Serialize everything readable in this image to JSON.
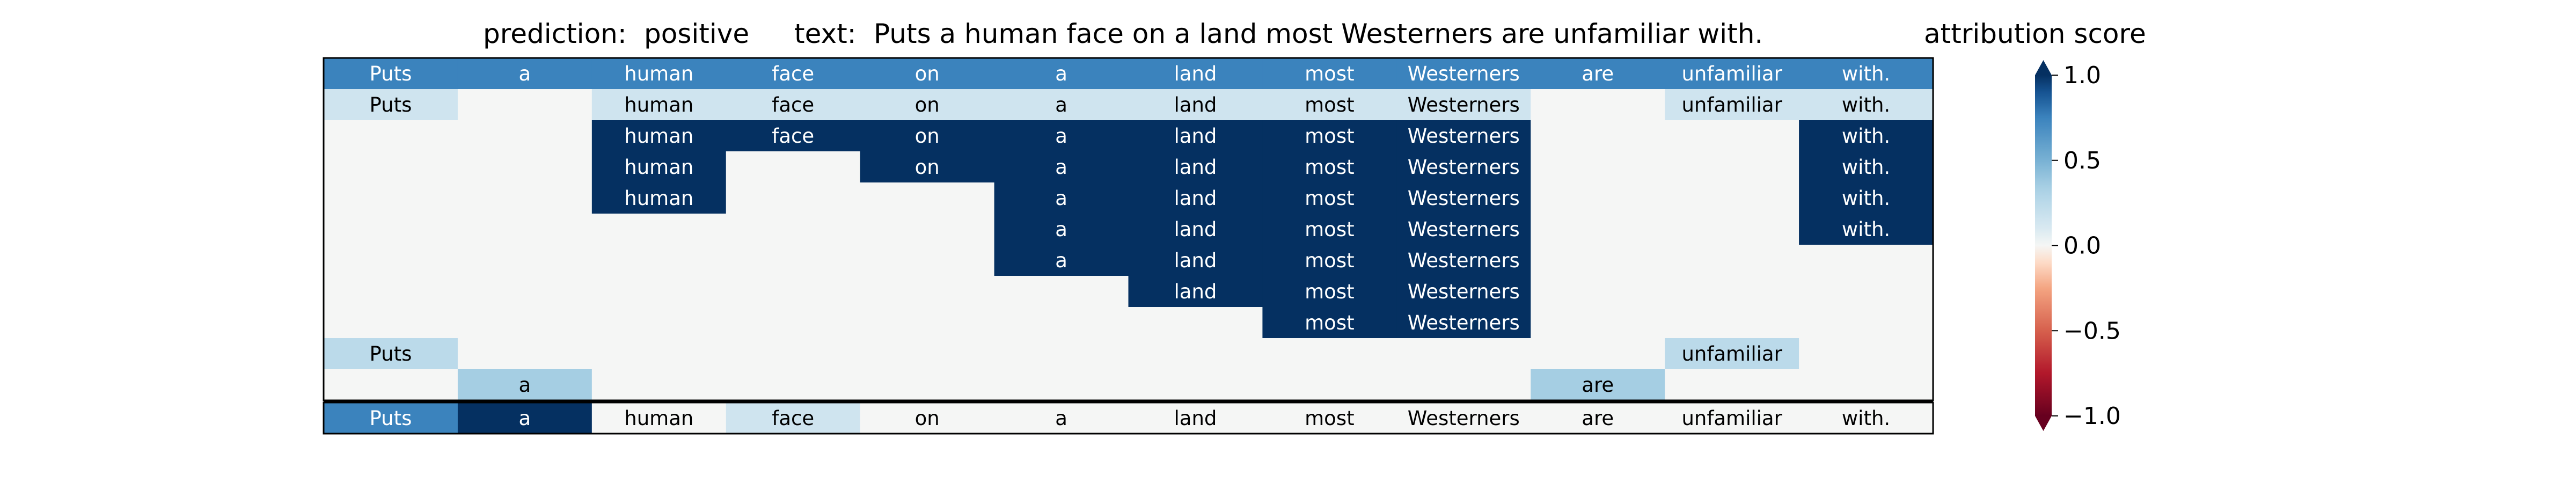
{
  "chart_data": {
    "type": "heatmap",
    "title": {
      "prediction_label": "prediction:",
      "prediction_value": "positive",
      "text_label": "text:",
      "text_value": "Puts a human face on a land most Westerners are unfamiliar with."
    },
    "tokens": [
      "Puts",
      "a",
      "human",
      "face",
      "on",
      "a",
      "land",
      "most",
      "Westerners",
      "are",
      "unfamiliar",
      "with."
    ],
    "rows": [
      [
        0.75,
        0.75,
        0.75,
        0.75,
        0.75,
        0.75,
        0.75,
        0.75,
        0.75,
        0.75,
        0.75,
        0.75
      ],
      [
        0.15,
        0.0,
        0.15,
        0.15,
        0.15,
        0.15,
        0.15,
        0.15,
        0.15,
        0.0,
        0.15,
        0.15
      ],
      [
        0.0,
        0.0,
        1.0,
        1.0,
        1.0,
        1.0,
        1.0,
        1.0,
        1.0,
        0.0,
        0.0,
        1.0
      ],
      [
        0.0,
        0.0,
        1.0,
        0.0,
        1.0,
        1.0,
        1.0,
        1.0,
        1.0,
        0.0,
        0.0,
        1.0
      ],
      [
        0.0,
        0.0,
        1.0,
        0.0,
        0.0,
        1.0,
        1.0,
        1.0,
        1.0,
        0.0,
        0.0,
        1.0
      ],
      [
        0.0,
        0.0,
        0.0,
        0.0,
        0.0,
        1.0,
        1.0,
        1.0,
        1.0,
        0.0,
        0.0,
        1.0
      ],
      [
        0.0,
        0.0,
        0.0,
        0.0,
        0.0,
        1.0,
        1.0,
        1.0,
        1.0,
        0.0,
        0.0,
        0.0
      ],
      [
        0.0,
        0.0,
        0.0,
        0.0,
        0.0,
        0.0,
        1.0,
        1.0,
        1.0,
        0.0,
        0.0,
        0.0
      ],
      [
        0.0,
        0.0,
        0.0,
        0.0,
        0.0,
        0.0,
        0.0,
        1.0,
        1.0,
        0.0,
        0.0,
        0.0
      ],
      [
        0.25,
        0.0,
        0.0,
        0.0,
        0.0,
        0.0,
        0.0,
        0.0,
        0.0,
        0.0,
        0.25,
        0.0
      ],
      [
        0.0,
        0.35,
        0.0,
        0.0,
        0.0,
        0.0,
        0.0,
        0.0,
        0.0,
        0.35,
        0.0,
        0.0
      ]
    ],
    "summary_row": [
      0.75,
      1.0,
      0.0,
      0.15,
      0.0,
      0.0,
      0.0,
      0.0,
      0.0,
      0.0,
      0.0,
      0.0
    ],
    "colorbar": {
      "label": "attribution score",
      "colormap": "RdBu",
      "range": [
        -1.0,
        1.0
      ],
      "ticks": [
        1.0,
        0.5,
        0.0,
        -0.5,
        -1.0
      ],
      "tick_labels": [
        "1.0",
        "0.5",
        "0.0",
        "−0.5",
        "−1.0"
      ],
      "extend": "both"
    },
    "colors": {
      "blue_max": "#053061",
      "blue_high": "#3b83bd",
      "blue_mid": "#a5cee3",
      "blue_light": "#d9e9f1",
      "neutral": "#f5f6f5",
      "red_max": "#67001f"
    }
  }
}
